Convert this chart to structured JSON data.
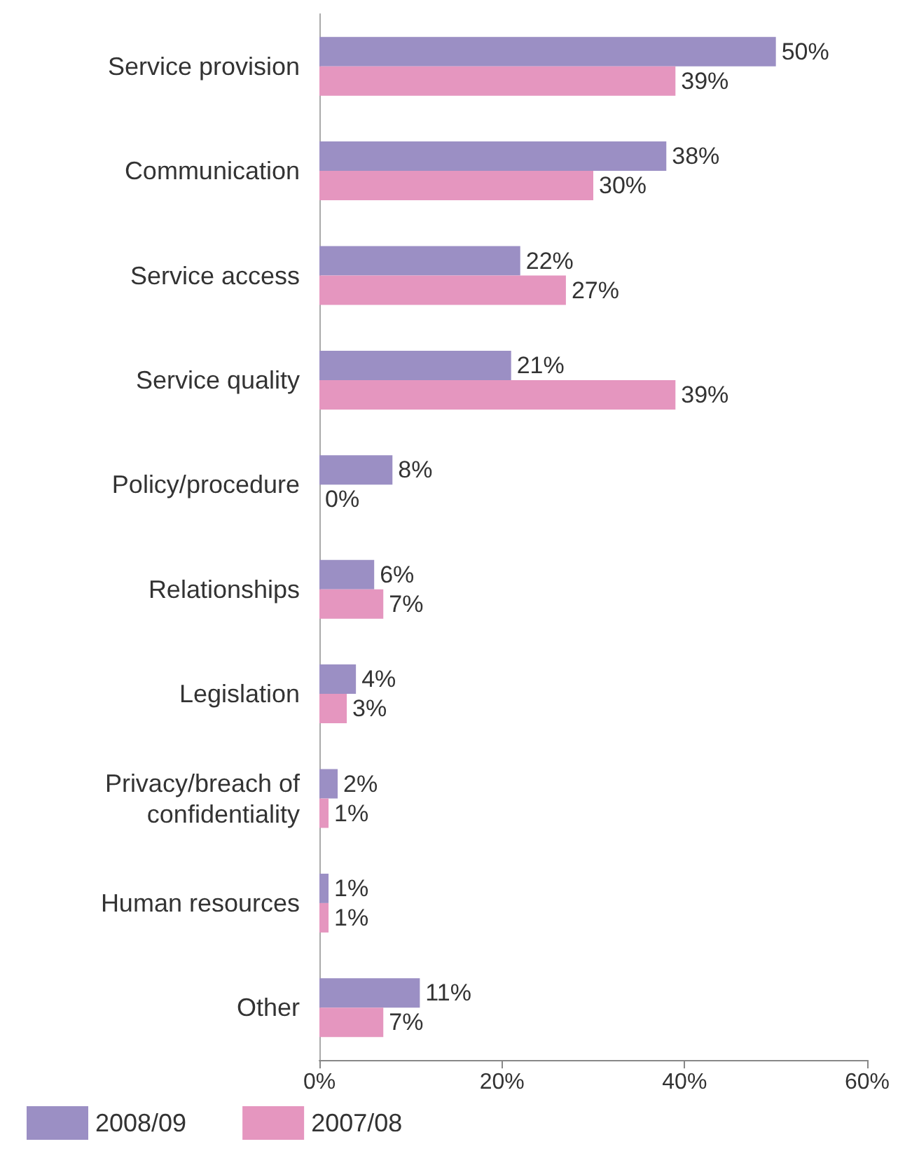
{
  "chart_data": {
    "type": "bar",
    "orientation": "horizontal",
    "categories": [
      "Service provision",
      "Communication",
      "Service access",
      "Service quality",
      "Policy/procedure",
      "Relationships",
      "Legislation",
      "Privacy/breach of\nconfidentiality",
      "Human resources",
      "Other"
    ],
    "series": [
      {
        "name": "2008/09",
        "color": "#9b8fc4",
        "values": [
          50,
          38,
          22,
          21,
          8,
          6,
          4,
          2,
          1,
          11
        ],
        "value_labels": [
          "50%",
          "38%",
          "22%",
          "21%",
          "8%",
          "6%",
          "4%",
          "2%",
          "1%",
          "11%"
        ]
      },
      {
        "name": "2007/08",
        "color": "#e596bf",
        "values": [
          39,
          30,
          27,
          39,
          0,
          7,
          3,
          1,
          1,
          7
        ],
        "value_labels": [
          "39%",
          "30%",
          "27%",
          "39%",
          "0%",
          "7%",
          "3%",
          "1%",
          "1%",
          "7%"
        ]
      }
    ],
    "xlim": [
      0,
      60
    ],
    "xticks": [
      {
        "value": 0,
        "label": "0%"
      },
      {
        "value": 20,
        "label": "20%"
      },
      {
        "value": 40,
        "label": "40%"
      },
      {
        "value": 60,
        "label": "60%"
      }
    ],
    "grid": false,
    "legend": "bottom left"
  }
}
